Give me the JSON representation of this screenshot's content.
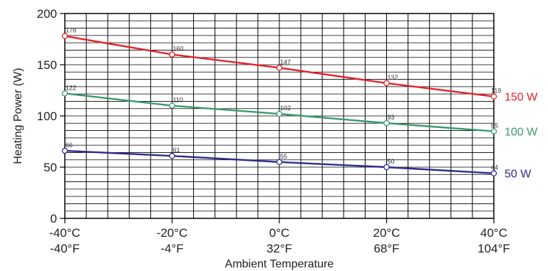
{
  "chart_data": {
    "type": "line",
    "title": "",
    "xlabel": "Ambient Temperature",
    "ylabel": "Heating Power (W)",
    "ylim": [
      0,
      200
    ],
    "y_ticks": [
      "0",
      "50",
      "100",
      "150",
      "200"
    ],
    "x": [
      -40,
      -20,
      0,
      20,
      40
    ],
    "x_tick_labels_c": [
      "-40°C",
      "-20°C",
      "0°C",
      "20°C",
      "40°C"
    ],
    "x_tick_labels_f": [
      "-40°F",
      "-4°F",
      "32°F",
      "68°F",
      "104°F"
    ],
    "grid": true,
    "series": [
      {
        "name": "150 W",
        "color": "#e8202a",
        "values": [
          178,
          160,
          147,
          132,
          119
        ]
      },
      {
        "name": "100 W",
        "color": "#3a9a6b",
        "values": [
          122,
          110,
          102,
          93,
          85
        ]
      },
      {
        "name": "50 W",
        "color": "#2b2d8f",
        "values": [
          66,
          61,
          55,
          50,
          44
        ]
      }
    ]
  }
}
